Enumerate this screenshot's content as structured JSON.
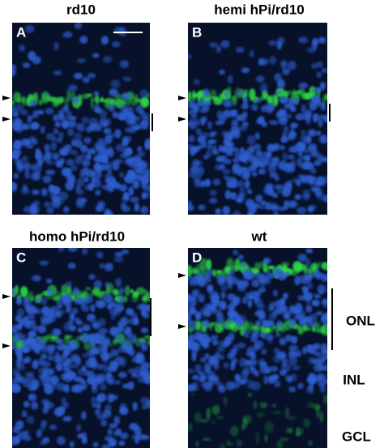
{
  "panels": [
    {
      "title": "rd10",
      "letter": "A"
    },
    {
      "title": "hemi hPi/rd10",
      "letter": "B"
    },
    {
      "title": "homo hPi/rd10",
      "letter": "C"
    },
    {
      "title": "wt",
      "letter": "D"
    }
  ],
  "layers": [
    "ONL",
    "INL",
    "GCL"
  ]
}
